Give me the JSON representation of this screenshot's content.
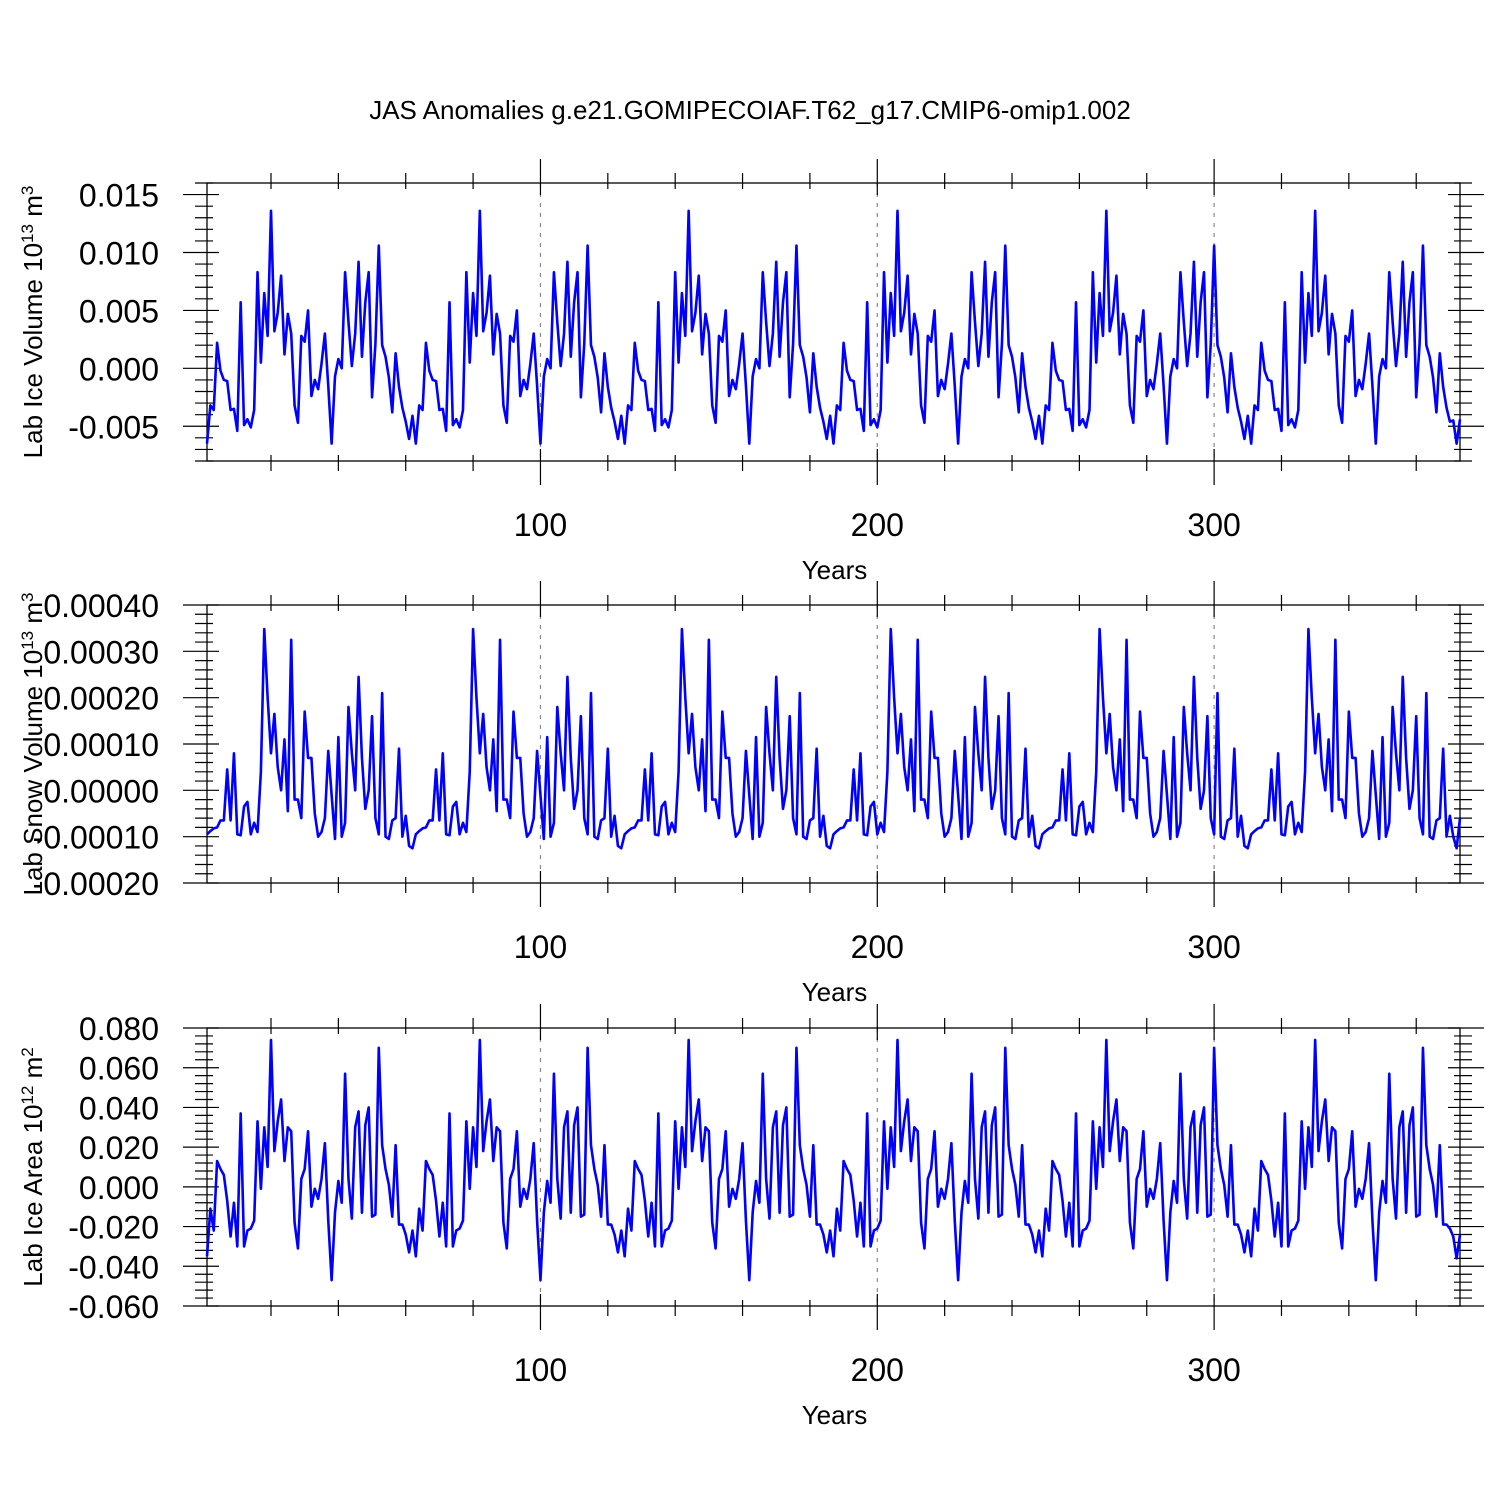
{
  "chart_data": {
    "title": "JAS Anomalies g.e21.GOMIPECOIAF.T62_g17.CMIP6-omip1.002",
    "line_color": "#0000ff",
    "panels": [
      {
        "id": "ice-volume",
        "type": "line",
        "xlabel": "Years",
        "ylabel": "Lab Ice Volume 10",
        "ylabel_sup": "13",
        "ylabel_unit": " m",
        "ylabel_unit_sup": "3",
        "xlim": [
          1,
          373
        ],
        "xticks": [
          100,
          200,
          300
        ],
        "xtick_labels": [
          "100",
          "200",
          "300"
        ],
        "ylim": [
          -0.008,
          0.016
        ],
        "yticks": [
          -0.005,
          0.0,
          0.005,
          0.01,
          0.015
        ],
        "ytick_labels": [
          "-0.005",
          "0.000",
          "0.005",
          "0.010",
          "0.015"
        ],
        "gridlines_x": [
          100,
          200,
          300
        ],
        "cycle_period": 62,
        "cycle_values": [
          -0.0065,
          -0.0032,
          -0.0036,
          0.0022,
          -0.0002,
          -0.001,
          -0.0011,
          -0.0036,
          -0.0035,
          -0.0054,
          0.0057,
          -0.0049,
          -0.0044,
          -0.0051,
          -0.0036,
          0.0083,
          0.0005,
          0.0065,
          0.0028,
          0.0136,
          0.0032,
          0.0048,
          0.008,
          0.0012,
          0.0047,
          0.003,
          -0.0032,
          -0.0047,
          0.0028,
          0.0023,
          0.005,
          -0.0024,
          -0.001,
          -0.0018,
          0.0004,
          0.003,
          -0.0015,
          -0.0065,
          -0.0007,
          0.0008,
          0.0,
          0.0083,
          0.004,
          0.0002,
          0.003,
          0.0092,
          0.001,
          0.0057,
          0.0083,
          -0.0025,
          0.0021,
          0.0106,
          0.002,
          0.001,
          -0.0008,
          -0.0038,
          0.0013,
          -0.0016,
          -0.0034,
          -0.0046,
          -0.0061,
          -0.0041
        ],
        "tail_values": [
          -0.0045,
          -0.0065,
          -0.0044
        ]
      },
      {
        "id": "snow-volume",
        "type": "line",
        "xlabel": "Years",
        "ylabel": "Lab Snow Volume 10",
        "ylabel_sup": "13",
        "ylabel_unit": " m",
        "ylabel_unit_sup": "3",
        "xlim": [
          1,
          373
        ],
        "xticks": [
          100,
          200,
          300
        ],
        "xtick_labels": [
          "100",
          "200",
          "300"
        ],
        "ylim": [
          -0.0002,
          0.0004
        ],
        "yticks": [
          -0.0002,
          -0.0001,
          0.0,
          0.0001,
          0.0002,
          0.0003,
          0.0004
        ],
        "ytick_labels": [
          "-0.00020",
          "-0.00010",
          "0.00000",
          "0.00010",
          "0.00020",
          "0.00030",
          "0.00040"
        ],
        "gridlines_x": [
          100,
          200,
          300
        ],
        "cycle_period": 62,
        "cycle_values": [
          -9.5e-05,
          -8.8e-05,
          -8.2e-05,
          -8e-05,
          -6.5e-05,
          -6.5e-05,
          4.5e-05,
          -6.5e-05,
          8e-05,
          -9.5e-05,
          -9.7e-05,
          -3.5e-05,
          -2.5e-05,
          -9.5e-05,
          -7e-05,
          -9e-05,
          4e-05,
          0.000348,
          0.0002,
          8e-05,
          0.000165,
          5e-05,
          0.0,
          0.00011,
          -4.5e-05,
          0.000325,
          -2e-05,
          -2e-05,
          -6e-05,
          0.00017,
          7e-05,
          7e-05,
          -5e-05,
          -0.0001,
          -9e-05,
          -6e-05,
          8.5e-05,
          -1e-05,
          -0.000105,
          0.000115,
          -0.0001,
          -7e-05,
          0.00018,
          8e-05,
          0.0,
          0.000245,
          7e-05,
          -4e-05,
          0.0,
          0.00016,
          -6e-05,
          -9.5e-05,
          0.00021,
          -0.0001,
          -0.000105,
          -6.5e-05,
          -6e-05,
          9e-05,
          -0.0001,
          -5.5e-05,
          -0.00012,
          -0.000125
        ],
        "tail_values": [
          -0.0001,
          -0.000125,
          -6e-05
        ]
      },
      {
        "id": "ice-area",
        "type": "line",
        "xlabel": "Years",
        "ylabel": "Lab Ice Area 10",
        "ylabel_sup": "12",
        "ylabel_unit": " m",
        "ylabel_unit_sup": "2",
        "xlim": [
          1,
          373
        ],
        "xticks": [
          100,
          200,
          300
        ],
        "xtick_labels": [
          "100",
          "200",
          "300"
        ],
        "ylim": [
          -0.06,
          0.08
        ],
        "yticks": [
          -0.06,
          -0.04,
          -0.02,
          0.0,
          0.02,
          0.04,
          0.06,
          0.08
        ],
        "ytick_labels": [
          "-0.060",
          "-0.040",
          "-0.020",
          "0.000",
          "0.020",
          "0.040",
          "0.060",
          "0.080"
        ],
        "gridlines_x": [
          100,
          200,
          300
        ],
        "cycle_period": 62,
        "cycle_values": [
          -0.035,
          -0.011,
          -0.022,
          0.013,
          0.009,
          0.006,
          -0.007,
          -0.025,
          -0.008,
          -0.03,
          0.037,
          -0.03,
          -0.022,
          -0.021,
          -0.017,
          0.033,
          -0.001,
          0.03,
          0.01,
          0.074,
          0.018,
          0.033,
          0.044,
          0.013,
          0.03,
          0.028,
          -0.018,
          -0.031,
          0.004,
          0.009,
          0.028,
          -0.01,
          -0.001,
          -0.006,
          0.004,
          0.022,
          -0.017,
          -0.047,
          -0.013,
          0.003,
          -0.008,
          0.057,
          0.004,
          -0.016,
          0.03,
          0.038,
          -0.013,
          0.031,
          0.04,
          -0.015,
          -0.014,
          0.07,
          0.021,
          0.009,
          0.001,
          -0.015,
          0.021,
          -0.019,
          -0.019,
          -0.024,
          -0.033,
          -0.022
        ],
        "tail_values": [
          -0.021,
          -0.025,
          -0.036,
          -0.024
        ]
      }
    ]
  }
}
